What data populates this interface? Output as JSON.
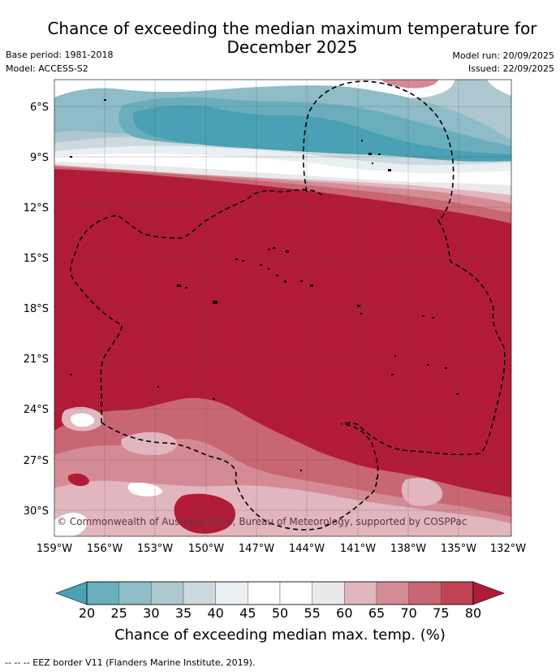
{
  "title": "Chance of exceeding the median maximum temperature for December 2025",
  "meta": {
    "base_period": "Base period: 1981-2018",
    "model": "Model: ACCESS-S2",
    "model_run": "Model run: 20/09/2025",
    "issued": "Issued: 22/09/2025"
  },
  "map": {
    "lat_labels": [
      "6°S",
      "9°S",
      "12°S",
      "15°S",
      "18°S",
      "21°S",
      "24°S",
      "27°S",
      "30°S"
    ],
    "lon_labels": [
      "159°W",
      "156°W",
      "153°W",
      "150°W",
      "147°W",
      "144°W",
      "141°W",
      "138°W",
      "135°W",
      "132°W"
    ],
    "copyright": "© Commonwealth of Australia 2025, Bureau of Meteorology, supported by COSPPac"
  },
  "colorbar": {
    "ticks": [
      "20",
      "25",
      "30",
      "35",
      "40",
      "45",
      "50",
      "55",
      "60",
      "65",
      "70",
      "75",
      "80"
    ],
    "colors": [
      "#4aa0b4",
      "#6aaebd",
      "#8ebcc7",
      "#adc9cf",
      "#cdd9dd",
      "#eaf0f2",
      "#ffffff",
      "#ffffff",
      "#e9e9eb",
      "#e2b6bf",
      "#d58b96",
      "#c96674",
      "#bf4352",
      "#b21b38"
    ],
    "title": "Chance of exceeding median max. temp. (%)"
  },
  "legend": {
    "eez": "-- -- -- EEZ border V11 (Flanders Marine Institute, 2019)."
  }
}
